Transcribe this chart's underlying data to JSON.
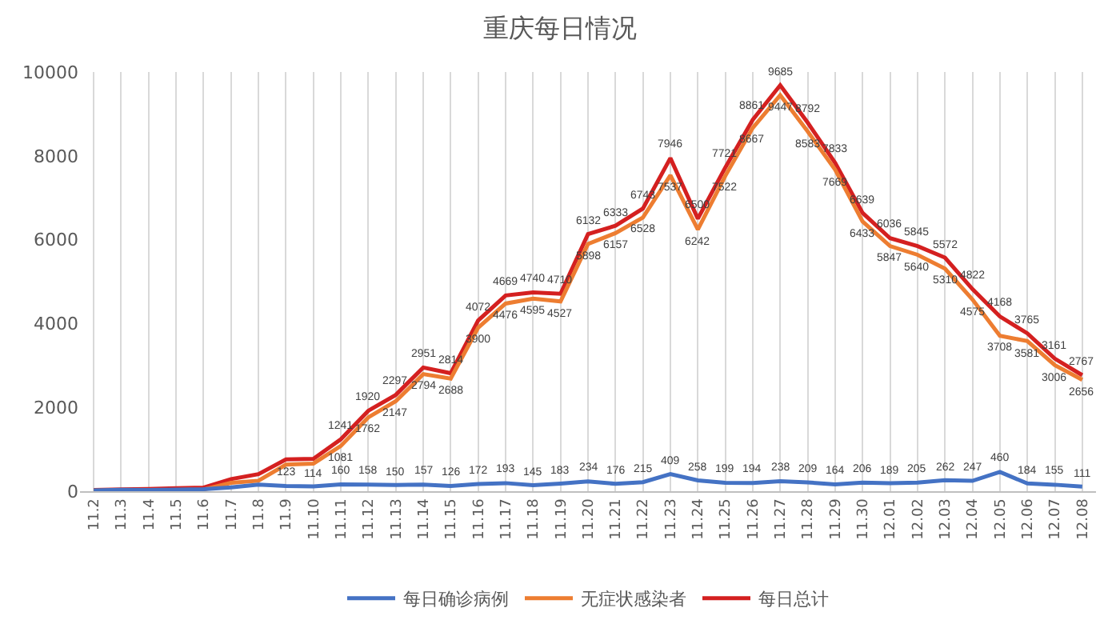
{
  "chart_data": {
    "type": "line",
    "title": "重庆每日情况",
    "categories": [
      "11.2",
      "11.3",
      "11.4",
      "11.5",
      "11.6",
      "11.7",
      "11.8",
      "11.9",
      "11.10",
      "11.11",
      "11.12",
      "11.13",
      "11.14",
      "11.15",
      "11.16",
      "11.17",
      "11.18",
      "11.19",
      "11.20",
      "11.21",
      "11.22",
      "11.23",
      "11.24",
      "11.25",
      "11.26",
      "11.27",
      "11.28",
      "11.29",
      "11.30",
      "12.01",
      "12.02",
      "12.03",
      "12.04",
      "12.05",
      "12.06",
      "12.07",
      "12.08"
    ],
    "series": [
      {
        "name": "每日确诊病例",
        "color": "#4472c4",
        "values": [
          17,
          32,
          31,
          40,
          48,
          89,
          157,
          123,
          114,
          160,
          158,
          150,
          157,
          126,
          172,
          193,
          145,
          183,
          234,
          176,
          215,
          409,
          258,
          199,
          194,
          238,
          209,
          164,
          206,
          189,
          205,
          262,
          247,
          460,
          184,
          155,
          111
        ],
        "value_labels": [
          null,
          null,
          null,
          null,
          null,
          null,
          null,
          "123",
          "114",
          "160",
          "158",
          "150",
          "157",
          "126",
          "172",
          "193",
          "145",
          "183",
          "234",
          "176",
          "215",
          "409",
          "258",
          "199",
          "194",
          "238",
          "209",
          "164",
          "206",
          "189",
          "205",
          "262",
          "247",
          "460",
          "184",
          "155",
          "111"
        ]
      },
      {
        "name": "无症状感染者",
        "color": "#ed7d31",
        "values": [
          13,
          10,
          20,
          30,
          40,
          200,
          250,
          634,
          660,
          1081,
          1762,
          2147,
          2794,
          2688,
          3900,
          4476,
          4595,
          4527,
          5898,
          6157,
          6528,
          7537,
          6242,
          7522,
          8667,
          9447,
          8583,
          7669,
          6433,
          5847,
          5640,
          5310,
          4575,
          3708,
          3581,
          3006,
          2656
        ],
        "value_labels": [
          null,
          null,
          null,
          null,
          null,
          null,
          null,
          null,
          null,
          "1081",
          "1762",
          "2147",
          "2794",
          "2688",
          "3900",
          "4476",
          "4595",
          "4527",
          "5898",
          "6157",
          "6528",
          "7537",
          "6242",
          "7522",
          "8667",
          "9447",
          "8583",
          "7669",
          "6433",
          "5847",
          "5640",
          "5310",
          "4575",
          "3708",
          "3581",
          "3006",
          "2656"
        ]
      },
      {
        "name": "每日总计",
        "color": "#d42020",
        "values": [
          30,
          42,
          51,
          70,
          88,
          289,
          407,
          757,
          774,
          1241,
          1920,
          2297,
          2951,
          2814,
          4072,
          4669,
          4740,
          4710,
          6132,
          6333,
          6743,
          7946,
          6500,
          7721,
          8861,
          9685,
          8792,
          7833,
          6639,
          6036,
          5845,
          5572,
          4822,
          4168,
          3765,
          3161,
          2767
        ],
        "value_labels": [
          null,
          null,
          null,
          null,
          null,
          null,
          null,
          null,
          null,
          "1241",
          "1920",
          "2297",
          "2951",
          "2814",
          "4072",
          "4669",
          "4740",
          "4710",
          "6132",
          "6333",
          "6743",
          "7946",
          "6500",
          "7721",
          "8861",
          "9685",
          "8792",
          "7833",
          "6639",
          "6036",
          "5845",
          "5572",
          "4822",
          "4168",
          "3765",
          "3161",
          "2767"
        ]
      }
    ],
    "ylim": [
      0,
      10000
    ],
    "yticks": [
      0,
      2000,
      4000,
      6000,
      8000,
      10000
    ],
    "grid": "x",
    "legend": "bottom",
    "marker": "none",
    "line_style": "solid"
  }
}
